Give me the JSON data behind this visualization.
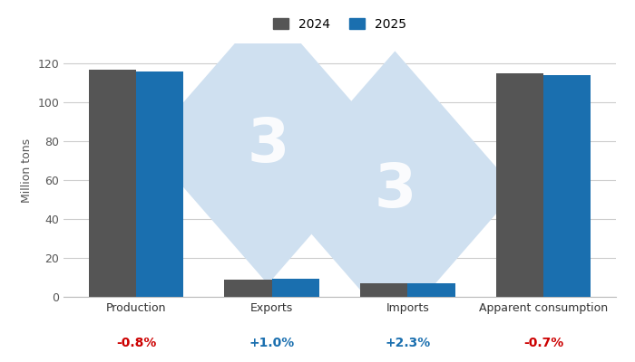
{
  "categories": [
    "Production",
    "Exports",
    "Imports",
    "Apparent consumption"
  ],
  "values_2024": [
    116.5,
    9.0,
    7.0,
    114.5
  ],
  "values_2025": [
    115.5,
    9.1,
    7.16,
    113.7
  ],
  "pct_changes": [
    "-0.8%",
    "+1.0%",
    "+2.3%",
    "-0.7%"
  ],
  "pct_colors": [
    "#cc0000",
    "#1a6faf",
    "#1a6faf",
    "#cc0000"
  ],
  "color_2024": "#555555",
  "color_2025": "#1a6faf",
  "ylabel": "Million tons",
  "ylim": [
    0,
    130
  ],
  "yticks": [
    0,
    20,
    40,
    60,
    80,
    100,
    120
  ],
  "legend_labels": [
    "2024",
    "2025"
  ],
  "grid_color": "#cccccc",
  "background_color": "#ffffff",
  "bar_width": 0.35,
  "watermark_color": "#cfe0f0"
}
